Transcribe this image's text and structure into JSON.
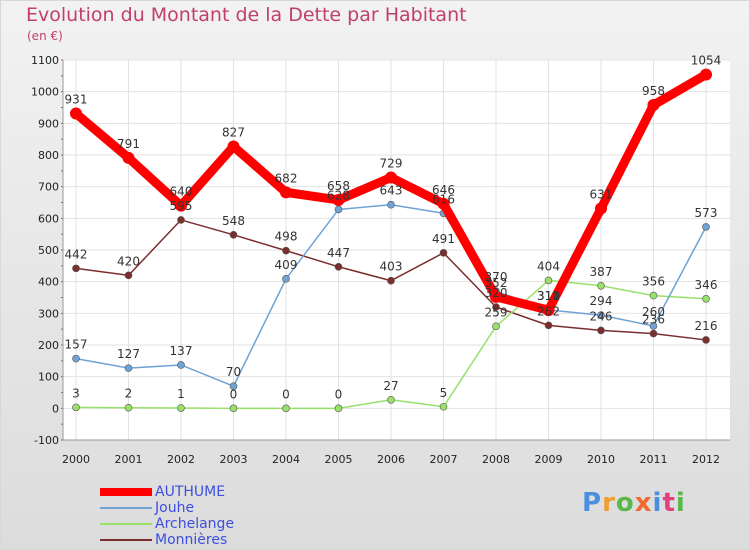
{
  "chart_data": {
    "type": "line",
    "title": "Evolution du Montant de la Dette par Habitant",
    "subtitle": "(en €)",
    "x": [
      "2000",
      "2001",
      "2002",
      "2003",
      "2004",
      "2005",
      "2006",
      "2007",
      "2008",
      "2009",
      "2010",
      "2011",
      "2012"
    ],
    "ylim": [
      -100,
      1100
    ],
    "yticks": [
      "-100",
      "0",
      "100",
      "200",
      "300",
      "400",
      "500",
      "600",
      "700",
      "800",
      "900",
      "1000",
      "1100"
    ],
    "grid": true,
    "legend_position": "bottom-left",
    "series": [
      {
        "name": "AUTHUME",
        "color": "#ff0000",
        "values": [
          931,
          791,
          640,
          827,
          682,
          658,
          729,
          646,
          352,
          310,
          631,
          958,
          1054
        ]
      },
      {
        "name": "Jouhe",
        "color": "#6fa3d4",
        "values": [
          157,
          127,
          137,
          70,
          409,
          628,
          643,
          616,
          370,
          311,
          294,
          260,
          573
        ]
      },
      {
        "name": "Archelange",
        "color": "#99e06a",
        "values": [
          3,
          2,
          1,
          0,
          0,
          0,
          27,
          5,
          259,
          404,
          387,
          356,
          346
        ]
      },
      {
        "name": "Monnières",
        "color": "#7a2e2e",
        "values": [
          442,
          420,
          595,
          548,
          498,
          447,
          403,
          491,
          320,
          262,
          246,
          236,
          216
        ]
      }
    ]
  },
  "logo": {
    "text": "Proxiti"
  }
}
